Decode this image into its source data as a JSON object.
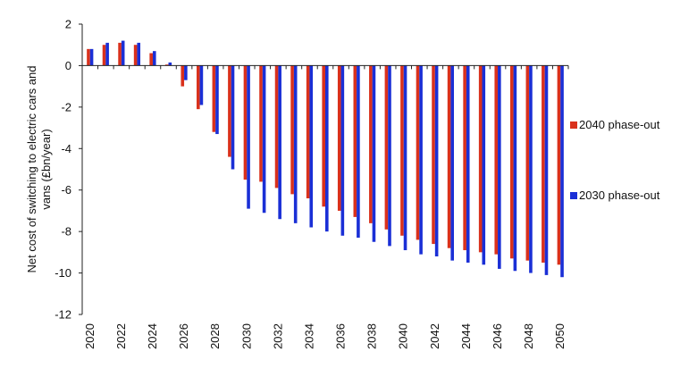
{
  "chart_data": {
    "type": "bar",
    "ylabel": "Net cost of switching to electric cars and vans (£bn/year)",
    "ylabel_lines": [
      "Net cost of switching to electric cars and",
      "vans (£bn/year)"
    ],
    "ylim": [
      -12,
      2
    ],
    "yticks": [
      2,
      0,
      -2,
      -4,
      -6,
      -8,
      -10,
      -12
    ],
    "categories": [
      "2020",
      "2021",
      "2022",
      "2023",
      "2024",
      "2025",
      "2026",
      "2027",
      "2028",
      "2029",
      "2030",
      "2031",
      "2032",
      "2033",
      "2034",
      "2035",
      "2036",
      "2037",
      "2038",
      "2039",
      "2040",
      "2041",
      "2042",
      "2043",
      "2044",
      "2045",
      "2046",
      "2047",
      "2048",
      "2049",
      "2050"
    ],
    "xtick_labels": [
      "2020",
      "2022",
      "2024",
      "2026",
      "2028",
      "2030",
      "2032",
      "2034",
      "2036",
      "2038",
      "2040",
      "2042",
      "2044",
      "2046",
      "2048",
      "2050"
    ],
    "legend_position": "right",
    "grid": false,
    "series": [
      {
        "name": "2040 phase-out",
        "color": "#d9311c",
        "values": [
          0.8,
          1.0,
          1.1,
          1.0,
          0.6,
          0.05,
          -1.0,
          -2.1,
          -3.2,
          -4.4,
          -5.5,
          -5.6,
          -5.9,
          -6.2,
          -6.4,
          -6.8,
          -7.0,
          -7.3,
          -7.6,
          -7.9,
          -8.2,
          -8.4,
          -8.6,
          -8.8,
          -8.9,
          -9.0,
          -9.1,
          -9.3,
          -9.4,
          -9.5,
          -9.6
        ]
      },
      {
        "name": "2030 phase-out",
        "color": "#1a2fd6",
        "values": [
          0.8,
          1.1,
          1.2,
          1.1,
          0.7,
          0.15,
          -0.7,
          -1.9,
          -3.3,
          -5.0,
          -6.9,
          -7.1,
          -7.4,
          -7.6,
          -7.8,
          -8.0,
          -8.2,
          -8.3,
          -8.5,
          -8.7,
          -8.9,
          -9.1,
          -9.2,
          -9.4,
          -9.5,
          -9.6,
          -9.8,
          -9.9,
          -10.0,
          -10.1,
          -10.2
        ]
      }
    ]
  }
}
